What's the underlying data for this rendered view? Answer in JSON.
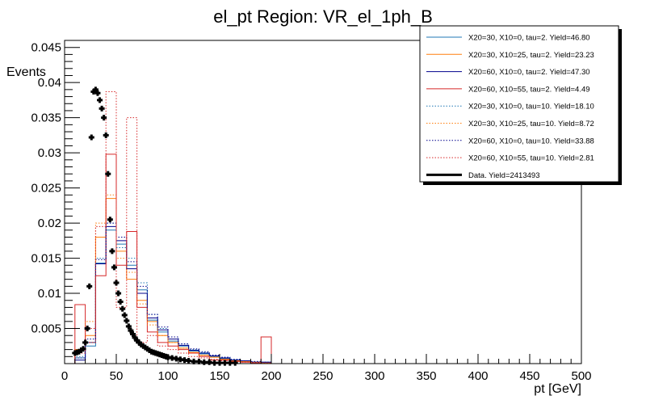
{
  "chart_data": {
    "type": "step-histogram",
    "title": "el_pt Region: VR_el_1ph_B",
    "xlabel": "pt [GeV]",
    "ylabel": "Events",
    "xlim": [
      0,
      500
    ],
    "ylim": [
      0,
      0.046
    ],
    "x_ticks": [
      "0",
      "50",
      "100",
      "150",
      "200",
      "250",
      "300",
      "350",
      "400",
      "450",
      "500"
    ],
    "y_ticks": [
      "0.005",
      "0.01",
      "0.015",
      "0.02",
      "0.025",
      "0.03",
      "0.035",
      "0.04",
      "0.045"
    ],
    "grid": false,
    "legend_position": "top-right",
    "bin_edges": [
      10,
      20,
      30,
      40,
      50,
      60,
      70,
      80,
      90,
      100,
      110,
      120,
      130,
      140,
      150,
      160,
      170,
      180,
      190,
      200
    ],
    "series": [
      {
        "name": "X20=30, X10=0, tau=2. Yield=46.80",
        "color": "#1f77b4",
        "style": "solid",
        "values": [
          0.0008,
          0.0025,
          0.0143,
          0.019,
          0.017,
          0.014,
          0.0105,
          0.0062,
          0.0045,
          0.0032,
          0.0025,
          0.0018,
          0.0014,
          0.001,
          0.0007,
          0.0005,
          0.0003,
          0.0002,
          0.0002
        ]
      },
      {
        "name": "X20=30, X10=25, tau=2. Yield=23.23",
        "color": "#ff7f0e",
        "style": "solid",
        "values": [
          0.002,
          0.004,
          0.018,
          0.0235,
          0.016,
          0.012,
          0.009,
          0.006,
          0.004,
          0.003,
          0.0022,
          0.0016,
          0.0012,
          0.0009,
          0.0006,
          0.0004,
          0.0003,
          0.0002,
          0.0001
        ]
      },
      {
        "name": "X20=60, X10=0, tau=2. Yield=47.30",
        "color": "#00008b",
        "style": "solid",
        "values": [
          0.0005,
          0.003,
          0.0142,
          0.0195,
          0.0175,
          0.0135,
          0.01,
          0.0065,
          0.0048,
          0.0035,
          0.0026,
          0.0019,
          0.0015,
          0.0011,
          0.0008,
          0.0005,
          0.0004,
          0.0002,
          0.0002
        ]
      },
      {
        "name": "X20=60, X10=55, tau=2. Yield=4.49",
        "color": "#d62728",
        "style": "solid",
        "values": [
          0.0084,
          0.003,
          0.0125,
          0.0298,
          0.014,
          0.0188,
          0.008,
          0.0045,
          0.003,
          0.0025,
          0.002,
          0.0015,
          0.001,
          0.0005,
          0.0005,
          0.0003,
          0.0002,
          0.0001,
          0.0038
        ]
      },
      {
        "name": "X20=30, X10=0, tau=10. Yield=18.10",
        "color": "#1f77b4",
        "style": "dotted",
        "values": [
          0.001,
          0.003,
          0.015,
          0.02,
          0.0165,
          0.015,
          0.0115,
          0.007,
          0.005,
          0.0038,
          0.0028,
          0.002,
          0.0016,
          0.0012,
          0.0009,
          0.0006,
          0.0004,
          0.0003,
          0.0002
        ]
      },
      {
        "name": "X20=30, X10=25, tau=10. Yield=8.72",
        "color": "#ff7f0e",
        "style": "dotted",
        "values": [
          0.002,
          0.006,
          0.02,
          0.024,
          0.015,
          0.013,
          0.0085,
          0.0055,
          0.004,
          0.003,
          0.0022,
          0.0016,
          0.0012,
          0.0009,
          0.0006,
          0.0004,
          0.0003,
          0.0002,
          0.0001
        ]
      },
      {
        "name": "X20=60, X10=0, tau=10. Yield=33.88",
        "color": "#00008b",
        "style": "dotted",
        "values": [
          0.0008,
          0.0035,
          0.0148,
          0.02,
          0.018,
          0.0145,
          0.011,
          0.007,
          0.0052,
          0.0038,
          0.0028,
          0.0021,
          0.0017,
          0.0012,
          0.0009,
          0.0006,
          0.0004,
          0.0003,
          0.0002
        ]
      },
      {
        "name": "X20=60, X10=55, tau=10. Yield=2.81",
        "color": "#d62728",
        "style": "dotted",
        "values": [
          0.0015,
          0.005,
          0.0195,
          0.0387,
          0.008,
          0.035,
          0.003,
          0.004,
          0.0025,
          0.002,
          0.0015,
          0.001,
          0.0008,
          0.0006,
          0.0004,
          0.0003,
          0.0002,
          0.0001,
          0.0001
        ]
      }
    ],
    "data_series": {
      "name": "Data. Yield=2413493",
      "color": "#000000",
      "x": [
        10,
        12,
        14,
        16,
        18,
        20,
        22,
        24,
        26,
        28,
        30,
        32,
        34,
        36,
        38,
        40,
        42,
        44,
        46,
        48,
        50,
        52,
        54,
        56,
        58,
        60,
        62,
        64,
        66,
        68,
        70,
        72,
        74,
        76,
        78,
        80,
        82,
        84,
        86,
        88,
        90,
        92,
        94,
        96,
        98,
        100,
        104,
        108,
        112,
        116,
        120,
        125,
        130,
        135,
        140,
        145,
        150,
        155,
        160,
        165
      ],
      "y": [
        0.0015,
        0.0016,
        0.0017,
        0.0019,
        0.0021,
        0.003,
        0.005,
        0.011,
        0.0322,
        0.0387,
        0.039,
        0.0385,
        0.0375,
        0.0363,
        0.035,
        0.0325,
        0.027,
        0.0205,
        0.016,
        0.0137,
        0.0115,
        0.01,
        0.0088,
        0.0078,
        0.0069,
        0.0061,
        0.0053,
        0.0047,
        0.0042,
        0.0037,
        0.0033,
        0.003,
        0.0027,
        0.0025,
        0.0023,
        0.0021,
        0.0019,
        0.0017,
        0.0016,
        0.0015,
        0.0014,
        0.0013,
        0.0012,
        0.0011,
        0.001,
        0.0009,
        0.0008,
        0.0007,
        0.0006,
        0.0005,
        0.0004,
        0.0003,
        0.0003,
        0.0002,
        0.0002,
        0.0001,
        0.0001,
        0.0001,
        0.0001,
        0.0001
      ]
    }
  }
}
